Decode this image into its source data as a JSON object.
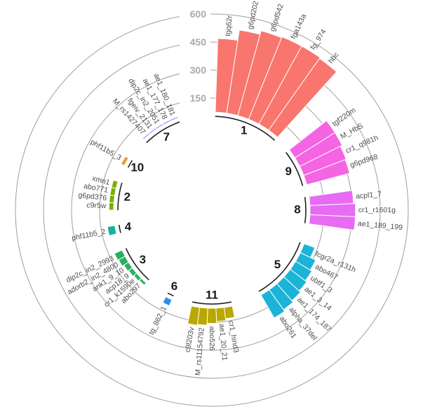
{
  "chart_data": {
    "type": "bar",
    "layout": "circular",
    "ylim": [
      0,
      600
    ],
    "radial_ticks": [
      "150",
      "300",
      "450",
      "600"
    ],
    "grid": true,
    "legend": "none",
    "groups": [
      {
        "id": "1",
        "color": "#F8766D",
        "bars": [
          {
            "label": "tgq62r",
            "value": 390
          },
          {
            "label": "g6pd202",
            "value": 445
          },
          {
            "label": "g6pd542",
            "value": 465
          },
          {
            "label": "fga143a",
            "value": 470
          },
          {
            "label": "fg_974",
            "value": 470
          },
          {
            "label": "hbc",
            "value": 465
          }
        ]
      },
      {
        "id": "9",
        "color": "#F564E3",
        "bars": [
          {
            "label": "tgf220m",
            "value": 250
          },
          {
            "label": "M_HbS",
            "value": 250
          },
          {
            "label": "cr1_q981h",
            "value": 240
          },
          {
            "label": "g6pd968",
            "value": 235
          }
        ]
      },
      {
        "id": "8",
        "color": "#E76BF3",
        "bars": [
          {
            "label": "acpl1_7",
            "value": 230
          },
          {
            "label": "cr1_r1601g",
            "value": 240
          },
          {
            "label": "ae1_189_199",
            "value": 240
          }
        ]
      },
      {
        "id": "5",
        "color": "#1BB4D8",
        "bars": [
          {
            "label": "fcgr2a_r131h",
            "value": 60
          },
          {
            "label": "abo467",
            "value": 90
          },
          {
            "label": "ubtf1_3",
            "value": 100
          },
          {
            "label": "ae1_3_14",
            "value": 110
          },
          {
            "label": "ae1_174_187",
            "value": 120
          },
          {
            "label": "alpha_37del",
            "value": 130
          },
          {
            "label": "abo261",
            "value": 140
          }
        ]
      },
      {
        "id": "11",
        "color": "#B8A800",
        "bars": [
          {
            "label": "cr1_hind3",
            "value": 60
          },
          {
            "label": "ae1_20_21",
            "value": 70
          },
          {
            "label": "abo526",
            "value": 80
          },
          {
            "label": "M_rs11154792",
            "value": 90
          },
          {
            "label": "c9l203v",
            "value": 95
          }
        ]
      },
      {
        "id": "6",
        "color": "#2F8FE8",
        "bars": [
          {
            "label": "tg_862_1",
            "value": 35
          }
        ]
      },
      {
        "id": "3",
        "color": "#2AB05E",
        "bars": [
          {
            "label": "abo297",
            "value": 15
          },
          {
            "label": "cr1_k1590e",
            "value": 20
          },
          {
            "label": "acp18_9",
            "value": 25
          },
          {
            "label": "ank1_9_10",
            "value": 30
          },
          {
            "label": "adorb2_in2_4800",
            "value": 40
          },
          {
            "label": "dip2c_in2_2993",
            "value": 45
          }
        ]
      },
      {
        "id": "4",
        "color": "#13B59A",
        "bars": [
          {
            "label": "phf11b5_2",
            "value": 40
          }
        ]
      },
      {
        "id": "2",
        "color": "#7CAE00",
        "bars": [
          {
            "label": "c9r5w",
            "value": 25
          },
          {
            "label": "g6pd376",
            "value": 25
          },
          {
            "label": "abo771",
            "value": 25
          },
          {
            "label": "xmn1",
            "value": 25
          }
        ]
      },
      {
        "id": "10",
        "color": "#E8A030",
        "bars": [
          {
            "label": "phf11b5_3",
            "value": 20
          }
        ]
      },
      {
        "id": "7",
        "color": "#A58AFF",
        "bars": [
          {
            "label": "M_rs1427407",
            "value": 8
          },
          {
            "label": "fgeiv_2131",
            "value": 8
          },
          {
            "label": "dip2c_in2_2051",
            "value": 8
          },
          {
            "label": "ae1_177_178",
            "value": 8
          },
          {
            "label": "ae1_180_181",
            "value": 8
          }
        ]
      }
    ]
  }
}
